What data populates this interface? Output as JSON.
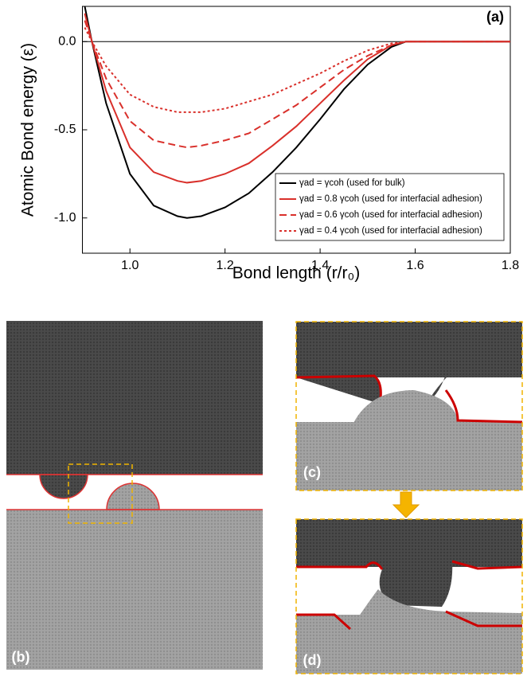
{
  "chart_data": {
    "type": "line",
    "panel_label": "(a)",
    "x_label": "Bond length (r/r₀)",
    "y_label": "Atomic Bond energy (ε)",
    "x": [
      0.905,
      0.92,
      0.95,
      1.0,
      1.05,
      1.1,
      1.12,
      1.15,
      1.2,
      1.25,
      1.3,
      1.35,
      1.4,
      1.45,
      1.5,
      1.55,
      1.58,
      1.8
    ],
    "series": [
      {
        "name": "γad = γcoh (used for bulk)",
        "color": "#000000",
        "style": "solid",
        "values": [
          0.2,
          0.0,
          -0.35,
          -0.75,
          -0.93,
          -0.99,
          -1.0,
          -0.99,
          -0.94,
          -0.86,
          -0.74,
          -0.6,
          -0.44,
          -0.27,
          -0.13,
          -0.03,
          0.0,
          0.0
        ]
      },
      {
        "name": "γad = 0.8 γcoh (used for interfacial adhesion)",
        "color": "#d9302b",
        "style": "solid",
        "values": [
          0.16,
          0.0,
          -0.28,
          -0.6,
          -0.74,
          -0.79,
          -0.8,
          -0.79,
          -0.75,
          -0.69,
          -0.59,
          -0.48,
          -0.35,
          -0.22,
          -0.1,
          -0.02,
          0.0,
          0.0
        ]
      },
      {
        "name": "γad = 0.6 γcoh (used for interfacial adhesion)",
        "color": "#d9302b",
        "style": "dashed",
        "values": [
          0.12,
          0.0,
          -0.21,
          -0.45,
          -0.56,
          -0.59,
          -0.6,
          -0.59,
          -0.56,
          -0.52,
          -0.44,
          -0.36,
          -0.26,
          -0.16,
          -0.08,
          -0.02,
          0.0,
          0.0
        ]
      },
      {
        "name": "γad = 0.4 γcoh (used for interfacial adhesion)",
        "color": "#d9302b",
        "style": "dotted",
        "values": [
          0.08,
          0.0,
          -0.14,
          -0.3,
          -0.37,
          -0.4,
          -0.4,
          -0.4,
          -0.38,
          -0.34,
          -0.3,
          -0.24,
          -0.18,
          -0.11,
          -0.05,
          -0.01,
          0.0,
          0.0
        ]
      }
    ],
    "hline": 0,
    "xlim": [
      0.9,
      1.8
    ],
    "ylim": [
      -1.2,
      0.2
    ],
    "xticks": [
      {
        "value": 1,
        "label": "1.0"
      },
      1.2,
      1.4,
      1.6,
      1.8
    ],
    "yticks": [
      {
        "value": 0,
        "label": "0.0"
      },
      -0.5,
      {
        "value": -1,
        "label": "-1.0"
      }
    ],
    "legend": "lower right"
  },
  "panels": {
    "b": "(b)",
    "c": "(c)",
    "d": "(d)"
  }
}
